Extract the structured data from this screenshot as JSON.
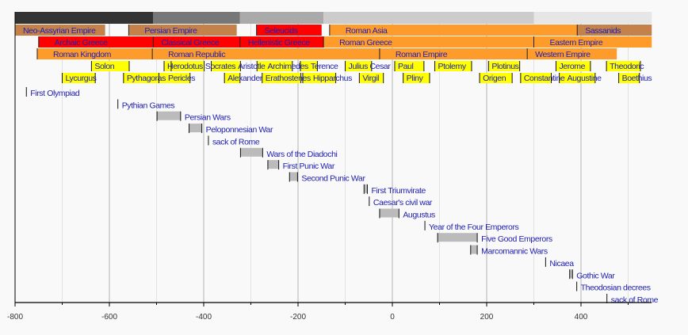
{
  "chart_data": {
    "type": "timeline",
    "xlim": [
      -800,
      550
    ],
    "xticks": [
      -800,
      -600,
      -400,
      -200,
      0,
      200,
      400
    ],
    "tick_labels": [
      "-800",
      "-600",
      "-400",
      "-200",
      "0",
      "200",
      "400"
    ],
    "grid": true,
    "colors": {
      "background": "#f9f9f9",
      "label": "#2020b0",
      "red": "#ff0000",
      "orange": "#fd9b2b",
      "brown": "#c4814a",
      "yellow": "#ffff00",
      "event": "#bbbbbb"
    },
    "era_bar": [
      {
        "from": -800,
        "to": -507,
        "color": "#333333"
      },
      {
        "from": -507,
        "to": -323,
        "color": "#777777"
      },
      {
        "from": -323,
        "to": -146,
        "color": "#aaaaaa"
      },
      {
        "from": -146,
        "to": 300,
        "color": "#cccccc"
      },
      {
        "from": 300,
        "to": 550,
        "color": "#e6e6e6"
      }
    ],
    "period_rows": [
      [
        {
          "label": "Neo-Assyrian Empire",
          "from": -800,
          "to": -609,
          "color": "#c4814a"
        },
        {
          "label": "Persian Empire",
          "from": -559,
          "to": -330,
          "color": "#c4814a"
        },
        {
          "label": "Seleucids",
          "from": -288,
          "to": -150,
          "color": "#ff0000"
        },
        {
          "label": "Roman Asia",
          "from": -133,
          "to": 392,
          "color": "#fd9b2b"
        },
        {
          "label": "Sassanids",
          "from": 392,
          "to": 550,
          "color": "#c4814a"
        }
      ],
      [
        {
          "label": "Archaic Greece",
          "from": -750,
          "to": -507,
          "color": "#ff0000"
        },
        {
          "label": "Classical Greece",
          "from": -507,
          "to": -323,
          "color": "#ff0000"
        },
        {
          "label": "Hellenistic Greece",
          "from": -323,
          "to": -146,
          "color": "#ff0000"
        },
        {
          "label": "Roman Greece",
          "from": -146,
          "to": 300,
          "color": "#fd9b2b"
        },
        {
          "label": "Eastern Empire",
          "from": 300,
          "to": 550,
          "color": "#fd9b2b"
        }
      ],
      [
        {
          "label": "Roman Kingdom",
          "from": -753,
          "to": -509,
          "color": "#fd9b2b"
        },
        {
          "label": "Roman Republic",
          "from": -509,
          "to": -27,
          "color": "#fd9b2b"
        },
        {
          "label": "Roman Empire",
          "from": -27,
          "to": 286,
          "color": "#fd9b2b"
        },
        {
          "label": "Western Empire",
          "from": 286,
          "to": 476,
          "color": "#fd9b2b"
        }
      ]
    ],
    "people_rows": [
      [
        {
          "label": "Solon",
          "from": -638,
          "to": -558
        },
        {
          "label": "Herodotus",
          "from": -484,
          "to": -425
        },
        {
          "label": "Socrates",
          "from": -469,
          "to": -399
        },
        {
          "label": "Aristotle",
          "from": -384,
          "to": -322
        },
        {
          "label": "Archimedes",
          "from": -287,
          "to": -212
        },
        {
          "label": "Terence",
          "from": -195,
          "to": -159
        },
        {
          "label": "Julius Cesar",
          "from": -100,
          "to": -44
        },
        {
          "label": "Paul",
          "from": 5,
          "to": 67
        },
        {
          "label": "Ptolemy",
          "from": 90,
          "to": 168
        },
        {
          "label": "Plotinus",
          "from": 204,
          "to": 270
        },
        {
          "label": "Jerome",
          "from": 347,
          "to": 420
        },
        {
          "label": "Theodoric",
          "from": 454,
          "to": 526
        }
      ],
      [
        {
          "label": "Lycurgus",
          "from": -700,
          "to": -630
        },
        {
          "label": "Pythagoras",
          "from": -570,
          "to": -495
        },
        {
          "label": "Pericles",
          "from": -495,
          "to": -429
        },
        {
          "label": "Alexander",
          "from": -356,
          "to": -323
        },
        {
          "label": "Erathostenes",
          "from": -276,
          "to": -194
        },
        {
          "label": "Hipparchus",
          "from": -190,
          "to": -120
        },
        {
          "label": "Virgil",
          "from": -70,
          "to": -19
        },
        {
          "label": "Pliny",
          "from": 23,
          "to": 79
        },
        {
          "label": "Origen",
          "from": 185,
          "to": 254
        },
        {
          "label": "Constantine",
          "from": 272,
          "to": 337
        },
        {
          "label": "Augustine",
          "from": 354,
          "to": 430
        },
        {
          "label": "Boethius",
          "from": 480,
          "to": 524
        }
      ]
    ],
    "events": [
      {
        "label": "First Olympiad",
        "from": -776,
        "to": -776
      },
      {
        "label": "Pythian Games",
        "from": -582,
        "to": -582
      },
      {
        "label": "Persian Wars",
        "from": -499,
        "to": -449
      },
      {
        "label": "Peloponnesian War",
        "from": -431,
        "to": -404
      },
      {
        "label": "sack of Rome",
        "from": -390,
        "to": -390
      },
      {
        "label": "Wars of the Diadochi",
        "from": -322,
        "to": -275
      },
      {
        "label": "First Punic War",
        "from": -264,
        "to": -241
      },
      {
        "label": "Second Punic War",
        "from": -218,
        "to": -201
      },
      {
        "label": "First Triumvirate",
        "from": -60,
        "to": -53
      },
      {
        "label": "Caesar's civil war",
        "from": -49,
        "to": -49
      },
      {
        "label": "Augustus",
        "from": -27,
        "to": 14
      },
      {
        "label": "Year of the Four Emperors",
        "from": 69,
        "to": 69
      },
      {
        "label": "Five Good Emperors",
        "from": 96,
        "to": 180
      },
      {
        "label": "Marcomannic Wars",
        "from": 166,
        "to": 180
      },
      {
        "label": "Nicaea",
        "from": 325,
        "to": 325
      },
      {
        "label": "Gothic War",
        "from": 376,
        "to": 382
      },
      {
        "label": "Theodosian decrees",
        "from": 391,
        "to": 391
      },
      {
        "label": "sack of Rome",
        "from": 455,
        "to": 455
      }
    ]
  }
}
